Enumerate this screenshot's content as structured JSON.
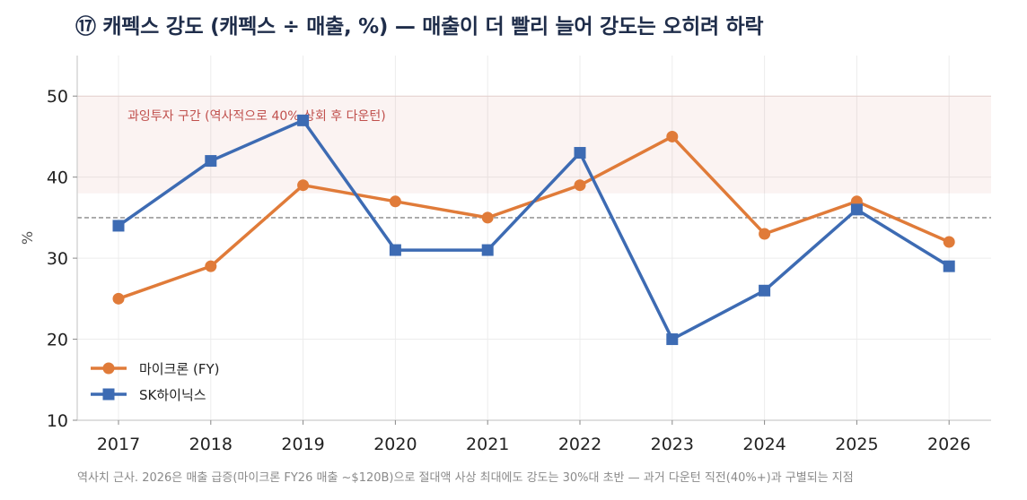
{
  "title": "⑰ 캐펙스 강도 (캐펙스 ÷ 매출, %) — 매출이 더 빨리 늘어 강도는 오히려 하락",
  "footnote": "역사치 근사. 2026은 매출 급증(마이크론 FY26 매출 ~$120B)으로 절대액 사상 최대에도 강도는 30%대 초반 — 과거 다운턴 직전(40%+)과 구별되는 지점",
  "chart_data": {
    "type": "line",
    "title": "⑰ 캐펙스 강도 (캐펙스 ÷ 매출, %) — 매출이 더 빨리 늘어 강도는 오히려 하락",
    "xlabel": "",
    "ylabel": "%",
    "x": [
      "2017",
      "2018",
      "2019",
      "2020",
      "2021",
      "2022",
      "2023",
      "2024",
      "2025",
      "2026"
    ],
    "ylim": [
      10,
      55
    ],
    "yticks": [
      "10",
      "20",
      "30",
      "40",
      "50"
    ],
    "grid": true,
    "legend_position": "bottom-left",
    "series": [
      {
        "name": "마이크론 (FY)",
        "color": "#e07b39",
        "marker": "circle",
        "values": [
          25,
          29,
          39,
          37,
          35,
          39,
          45,
          33,
          37,
          32
        ]
      },
      {
        "name": "SK하이닉스",
        "color": "#3d6bb3",
        "marker": "square",
        "values": [
          34,
          42,
          47,
          31,
          31,
          43,
          20,
          26,
          36,
          29
        ]
      }
    ],
    "band": {
      "from": 38,
      "to": 50,
      "label": "과잉투자 구간 (역사적으로 40% 상회 후 다운턴)",
      "color": "#c0504d"
    },
    "reference_line": {
      "value": 35,
      "color": "#888888",
      "style": "dashed"
    }
  }
}
